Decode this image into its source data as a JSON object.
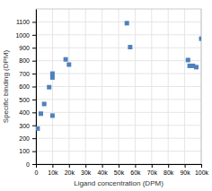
{
  "chart_data": {
    "type": "scatter",
    "xlabel": "Ligand concentration  (DPM)",
    "ylabel": "Specific binding (DPM)",
    "x": [
      1000,
      3000,
      5000,
      8000,
      10000,
      10000,
      10000,
      18000,
      20000,
      55000,
      57000,
      92000,
      93000,
      95000,
      97000,
      100000
    ],
    "values": [
      275,
      390,
      465,
      595,
      700,
      670,
      375,
      810,
      770,
      1090,
      905,
      805,
      760,
      760,
      750,
      970
    ],
    "color": "#4f81bd",
    "marker": "square",
    "xlim": [
      0,
      100000
    ],
    "ylim": [
      0,
      1200
    ],
    "xticks": [
      0,
      {
        "value": 10000,
        "label": "10k"
      },
      {
        "value": 20000,
        "label": "20k"
      },
      {
        "value": 30000,
        "label": "30k"
      },
      {
        "value": 40000,
        "label": "40k"
      },
      {
        "value": 50000,
        "label": "50k"
      },
      {
        "value": 60000,
        "label": "60k"
      },
      {
        "value": 70000,
        "label": "70k"
      },
      {
        "value": 80000,
        "label": "80k"
      },
      {
        "value": 90000,
        "label": "90k"
      },
      {
        "value": 100000,
        "label": "100k"
      }
    ],
    "yticks": [
      0,
      100,
      200,
      300,
      400,
      500,
      600,
      700,
      800,
      900,
      1000,
      1100
    ],
    "grid": true
  }
}
